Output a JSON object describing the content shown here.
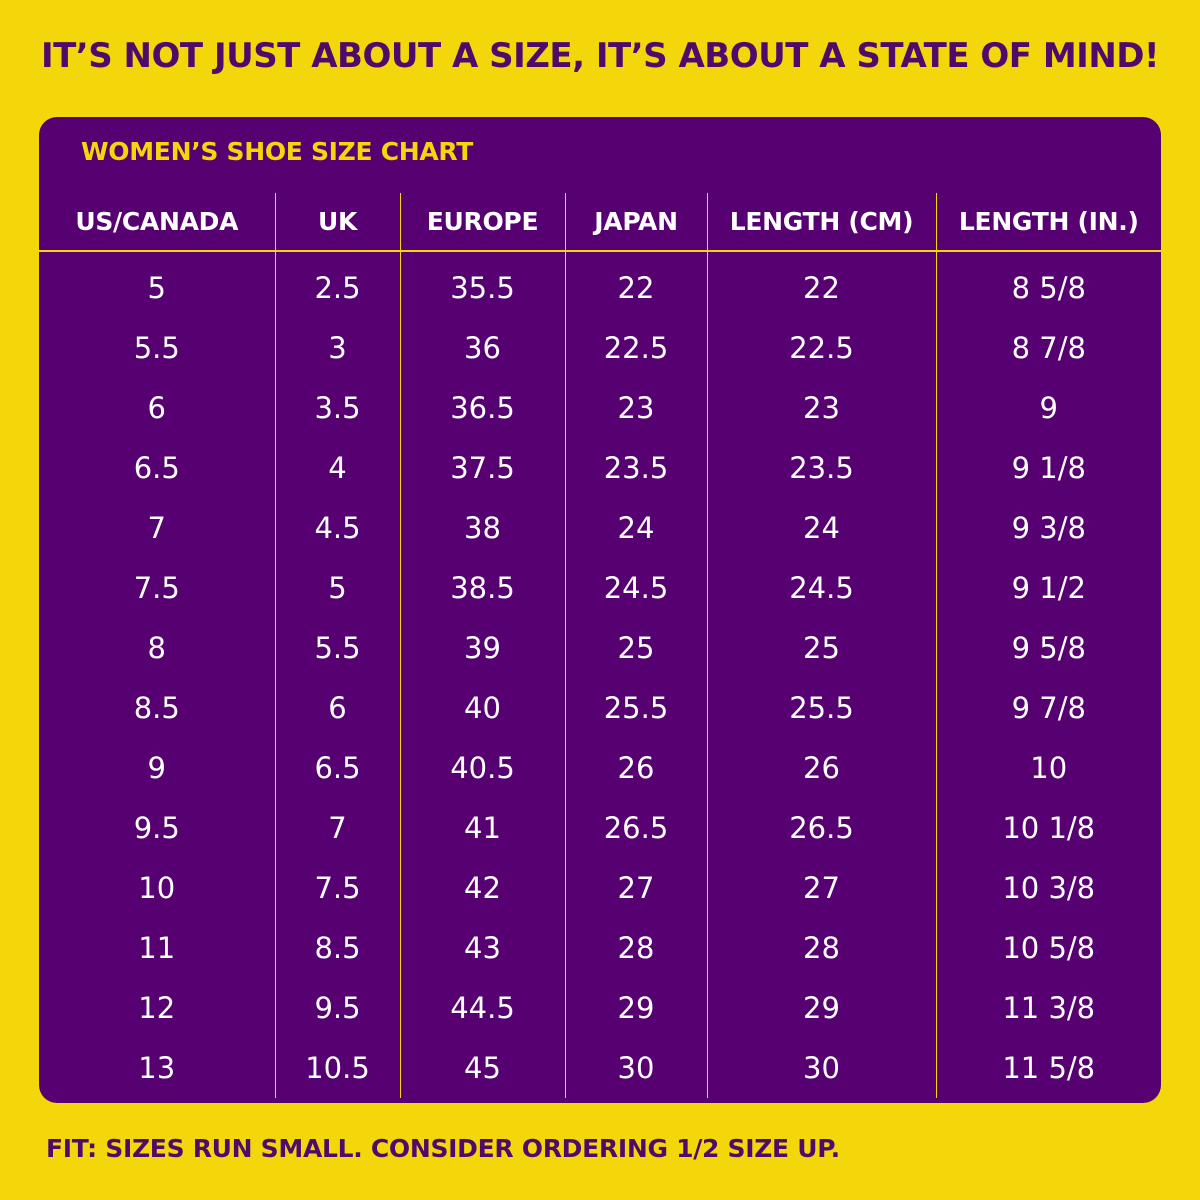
{
  "headline": "IT’S NOT JUST ABOUT A SIZE, IT’S ABOUT A STATE OF MIND!",
  "chart": {
    "title": "WOMEN’S SHOE SIZE CHART",
    "columns": [
      "US/CANADA",
      "UK",
      "EUROPE",
      "JAPAN",
      "LENGTH (CM)",
      "LENGTH (IN.)"
    ],
    "rows": [
      [
        "5",
        "2.5",
        "35.5",
        "22",
        "22",
        "8 5/8"
      ],
      [
        "5.5",
        "3",
        "36",
        "22.5",
        "22.5",
        "8 7/8"
      ],
      [
        "6",
        "3.5",
        "36.5",
        "23",
        "23",
        "9"
      ],
      [
        "6.5",
        "4",
        "37.5",
        "23.5",
        "23.5",
        "9 1/8"
      ],
      [
        "7",
        "4.5",
        "38",
        "24",
        "24",
        "9 3/8"
      ],
      [
        "7.5",
        "5",
        "38.5",
        "24.5",
        "24.5",
        "9 1/2"
      ],
      [
        "8",
        "5.5",
        "39",
        "25",
        "25",
        "9 5/8"
      ],
      [
        "8.5",
        "6",
        "40",
        "25.5",
        "25.5",
        "9 7/8"
      ],
      [
        "9",
        "6.5",
        "40.5",
        "26",
        "26",
        "10"
      ],
      [
        "9.5",
        "7",
        "41",
        "26.5",
        "26.5",
        "10 1/8"
      ],
      [
        "10",
        "7.5",
        "42",
        "27",
        "27",
        "10 3/8"
      ],
      [
        "11",
        "8.5",
        "43",
        "28",
        "28",
        "10 5/8"
      ],
      [
        "12",
        "9.5",
        "44.5",
        "29",
        "29",
        "11 3/8"
      ],
      [
        "13",
        "10.5",
        "45",
        "30",
        "30",
        "11 5/8"
      ]
    ]
  },
  "footnote": "FIT: SIZES RUN SMALL. CONSIDER ORDERING 1/2 SIZE UP.",
  "colors": {
    "background": "#f4d70a",
    "panel": "#560071",
    "headline_text": "#4e0b6b",
    "accent": "#f4d70a",
    "cell_text": "#ffffff"
  }
}
